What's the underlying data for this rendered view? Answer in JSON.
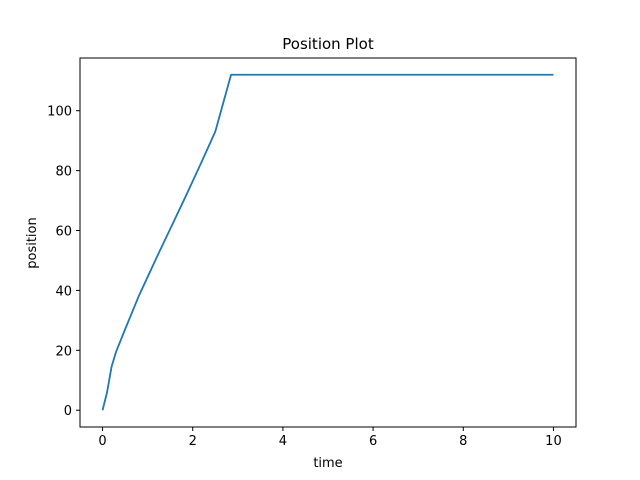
{
  "chart_data": {
    "type": "line",
    "title": "Position Plot",
    "xlabel": "time",
    "ylabel": "position",
    "xlim": [
      -0.5,
      10.5
    ],
    "ylim": [
      -5.6,
      117.6
    ],
    "xticks": [
      0,
      2,
      4,
      6,
      8,
      10
    ],
    "yticks": [
      0,
      20,
      40,
      60,
      80,
      100
    ],
    "grid": false,
    "series": [
      {
        "color": "#1f77b4",
        "x": [
          0,
          0.1,
          0.2,
          0.3,
          0.5,
          0.8,
          1.0,
          1.2,
          1.5,
          1.8,
          2.0,
          2.2,
          2.5,
          2.85,
          3.0,
          4.0,
          5.0,
          6.0,
          7.0,
          8.0,
          9.0,
          10.0
        ],
        "y": [
          0,
          6,
          14.5,
          19.5,
          27,
          38,
          44.5,
          51,
          60.5,
          70,
          76.5,
          83,
          93,
          112,
          112,
          112,
          112,
          112,
          112,
          112,
          112,
          112
        ]
      }
    ]
  }
}
